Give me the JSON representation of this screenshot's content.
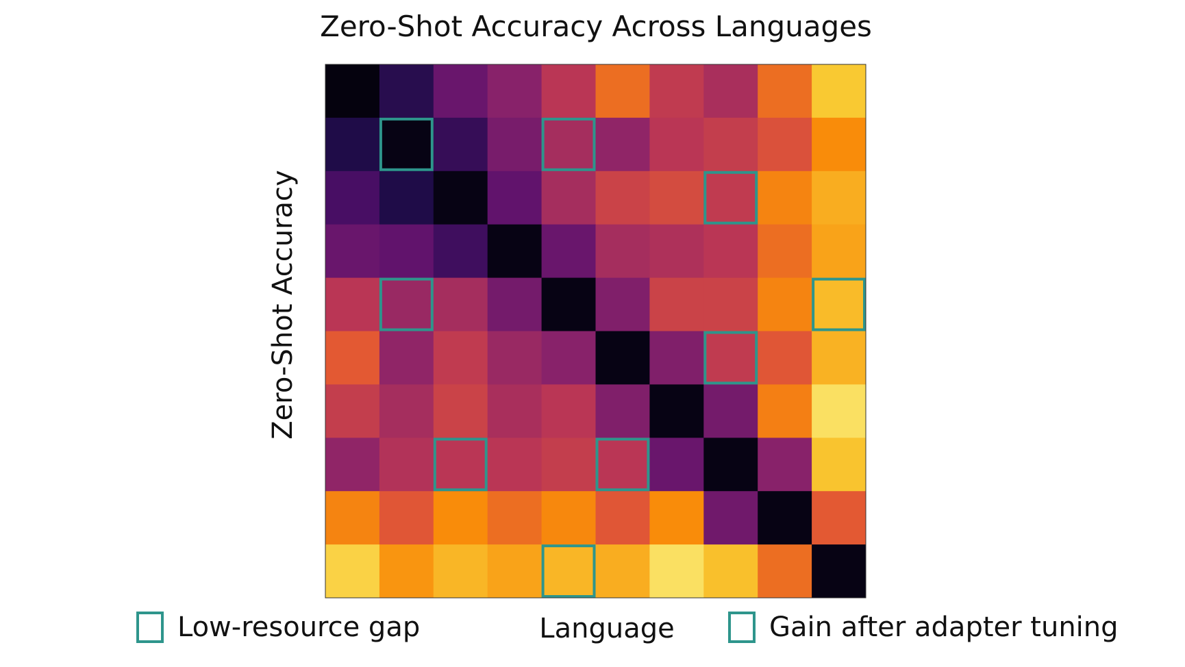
{
  "chart_data": {
    "type": "heatmap",
    "title": "Zero-Shot Accuracy Across Languages",
    "xlabel": "Language",
    "ylabel": "Zero-Shot Accuracy",
    "colormap": "inferno",
    "grid": false,
    "values": [
      [
        0.02,
        0.15,
        0.3,
        0.38,
        0.5,
        0.68,
        0.52,
        0.46,
        0.68,
        0.88
      ],
      [
        0.13,
        0.03,
        0.18,
        0.34,
        0.45,
        0.4,
        0.5,
        0.53,
        0.6,
        0.75
      ],
      [
        0.22,
        0.13,
        0.03,
        0.28,
        0.45,
        0.55,
        0.58,
        0.52,
        0.73,
        0.82
      ],
      [
        0.3,
        0.28,
        0.2,
        0.03,
        0.3,
        0.45,
        0.47,
        0.5,
        0.68,
        0.8
      ],
      [
        0.5,
        0.42,
        0.45,
        0.33,
        0.03,
        0.36,
        0.55,
        0.55,
        0.73,
        0.85
      ],
      [
        0.63,
        0.4,
        0.52,
        0.42,
        0.38,
        0.03,
        0.36,
        0.52,
        0.62,
        0.83
      ],
      [
        0.53,
        0.45,
        0.55,
        0.46,
        0.5,
        0.36,
        0.03,
        0.33,
        0.72,
        0.93
      ],
      [
        0.4,
        0.48,
        0.5,
        0.5,
        0.53,
        0.5,
        0.3,
        0.03,
        0.38,
        0.87
      ],
      [
        0.73,
        0.62,
        0.75,
        0.68,
        0.74,
        0.62,
        0.75,
        0.32,
        0.03,
        0.63
      ],
      [
        0.9,
        0.77,
        0.84,
        0.8,
        0.84,
        0.82,
        0.93,
        0.86,
        0.68,
        0.03
      ]
    ],
    "highlighted_cells": [
      [
        1,
        1
      ],
      [
        1,
        4
      ],
      [
        2,
        7
      ],
      [
        4,
        1
      ],
      [
        4,
        9
      ],
      [
        5,
        7
      ],
      [
        7,
        2
      ],
      [
        7,
        5
      ],
      [
        9,
        4
      ]
    ],
    "highlight_color": "#2e958c",
    "legend": {
      "placement": "bottom",
      "entries": [
        {
          "label": "Low-resource gap",
          "color": "#2e958c"
        },
        {
          "label": "Gain after adapter tuning",
          "color": "#2e958c"
        }
      ]
    }
  }
}
